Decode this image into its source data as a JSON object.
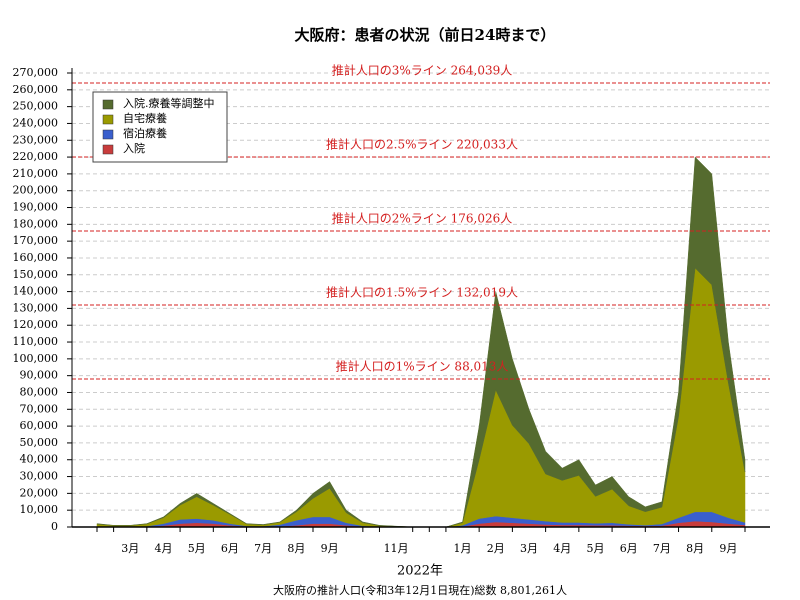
{
  "chart_data": {
    "type": "stacked-area",
    "title": "大阪府：患者の状況（前日24時まで）",
    "x_label": "2022年",
    "note": "大阪府の推計人口(令和3年12月1日現在)総数 8,801,261人",
    "categories": [
      null,
      null,
      "3月",
      null,
      "4月",
      null,
      "5月",
      null,
      "6月",
      null,
      "7月",
      null,
      "8月",
      null,
      "9月",
      null,
      null,
      null,
      "11月",
      null,
      null,
      null,
      "1月",
      null,
      "2月",
      null,
      "3月",
      null,
      "4月",
      null,
      "5月",
      null,
      "6月",
      null,
      "7月",
      null,
      "8月",
      null,
      "9月",
      null
    ],
    "series": [
      {
        "name": "入院",
        "color": "#c83c3c",
        "values": [
          200,
          100,
          100,
          200,
          800,
          2000,
          2500,
          2000,
          1000,
          300,
          200,
          400,
          1000,
          2000,
          2000,
          1000,
          300,
          100,
          50,
          0,
          0,
          0,
          300,
          2000,
          3000,
          2500,
          2000,
          1500,
          1200,
          1200,
          1000,
          1000,
          800,
          600,
          800,
          2500,
          3500,
          3000,
          2000,
          1200
        ]
      },
      {
        "name": "宿泊療養",
        "color": "#3a5fcd",
        "values": [
          300,
          200,
          200,
          300,
          1200,
          2500,
          2500,
          2000,
          1000,
          300,
          300,
          1000,
          3000,
          4000,
          4000,
          1500,
          400,
          100,
          50,
          0,
          0,
          0,
          700,
          3000,
          3500,
          3000,
          2500,
          2000,
          1500,
          1500,
          1200,
          1500,
          800,
          500,
          1000,
          3000,
          5500,
          6000,
          3500,
          1500
        ]
      },
      {
        "name": "自宅療養",
        "color": "#9a9a00",
        "values": [
          1200,
          600,
          600,
          1300,
          3500,
          8500,
          13000,
          9000,
          5500,
          1200,
          800,
          1400,
          5000,
          11000,
          17000,
          6000,
          1800,
          600,
          300,
          0,
          0,
          0,
          1500,
          35000,
          75000,
          55000,
          45000,
          28000,
          25000,
          28000,
          16000,
          20000,
          11000,
          8000,
          10000,
          60000,
          145000,
          135000,
          80000,
          30000
        ]
      },
      {
        "name": "入院.療養等調整中",
        "color": "#556b2f",
        "values": [
          300,
          100,
          100,
          200,
          500,
          1000,
          2000,
          1000,
          500,
          200,
          200,
          200,
          1000,
          3000,
          4000,
          1500,
          500,
          200,
          100,
          0,
          0,
          0,
          500,
          20000,
          58500,
          39500,
          20500,
          13500,
          7300,
          9300,
          6800,
          7500,
          5400,
          2900,
          3200,
          14500,
          66000,
          66000,
          24500,
          7300
        ]
      }
    ],
    "reference_lines": [
      {
        "value": 264039,
        "label": "推計人口の3%ライン 264,039人"
      },
      {
        "value": 220033,
        "label": "推計人口の2.5%ライン 220,033人"
      },
      {
        "value": 176026,
        "label": "推計人口の2%ライン 176,026人"
      },
      {
        "value": 132019,
        "label": "推計人口の1.5%ライン 132,019人"
      },
      {
        "value": 88013,
        "label": "推計人口の1%ライン 88,013人"
      }
    ],
    "reference_color": "#d42020",
    "ylim": [
      0,
      270000
    ],
    "yticks": [
      0,
      {
        "value": 10000,
        "label": "10,000"
      },
      {
        "value": 20000,
        "label": "20,000"
      },
      {
        "value": 30000,
        "label": "30,000"
      },
      {
        "value": 40000,
        "label": "40,000"
      },
      {
        "value": 50000,
        "label": "50,000"
      },
      {
        "value": 60000,
        "label": "60,000"
      },
      {
        "value": 70000,
        "label": "70,000"
      },
      {
        "value": 80000,
        "label": "80,000"
      },
      {
        "value": 90000,
        "label": "90,000"
      },
      {
        "value": 100000,
        "label": "100,000"
      },
      {
        "value": 110000,
        "label": "110,000"
      },
      {
        "value": 120000,
        "label": "120,000"
      },
      {
        "value": 130000,
        "label": "130,000"
      },
      {
        "value": 140000,
        "label": "140,000"
      },
      {
        "value": 150000,
        "label": "150,000"
      },
      {
        "value": 160000,
        "label": "160,000"
      },
      {
        "value": 170000,
        "label": "170,000"
      },
      {
        "value": 180000,
        "label": "180,000"
      },
      {
        "value": 190000,
        "label": "190,000"
      },
      {
        "value": 200000,
        "label": "200,000"
      },
      {
        "value": 210000,
        "label": "210,000"
      },
      {
        "value": 220000,
        "label": "220,000"
      },
      {
        "value": 230000,
        "label": "230,000"
      },
      {
        "value": 240000,
        "label": "240,000"
      },
      {
        "value": 250000,
        "label": "250,000"
      },
      {
        "value": 260000,
        "label": "260,000"
      },
      {
        "value": 270000,
        "label": "270,000"
      }
    ],
    "grid": true,
    "legend": "upper left"
  }
}
